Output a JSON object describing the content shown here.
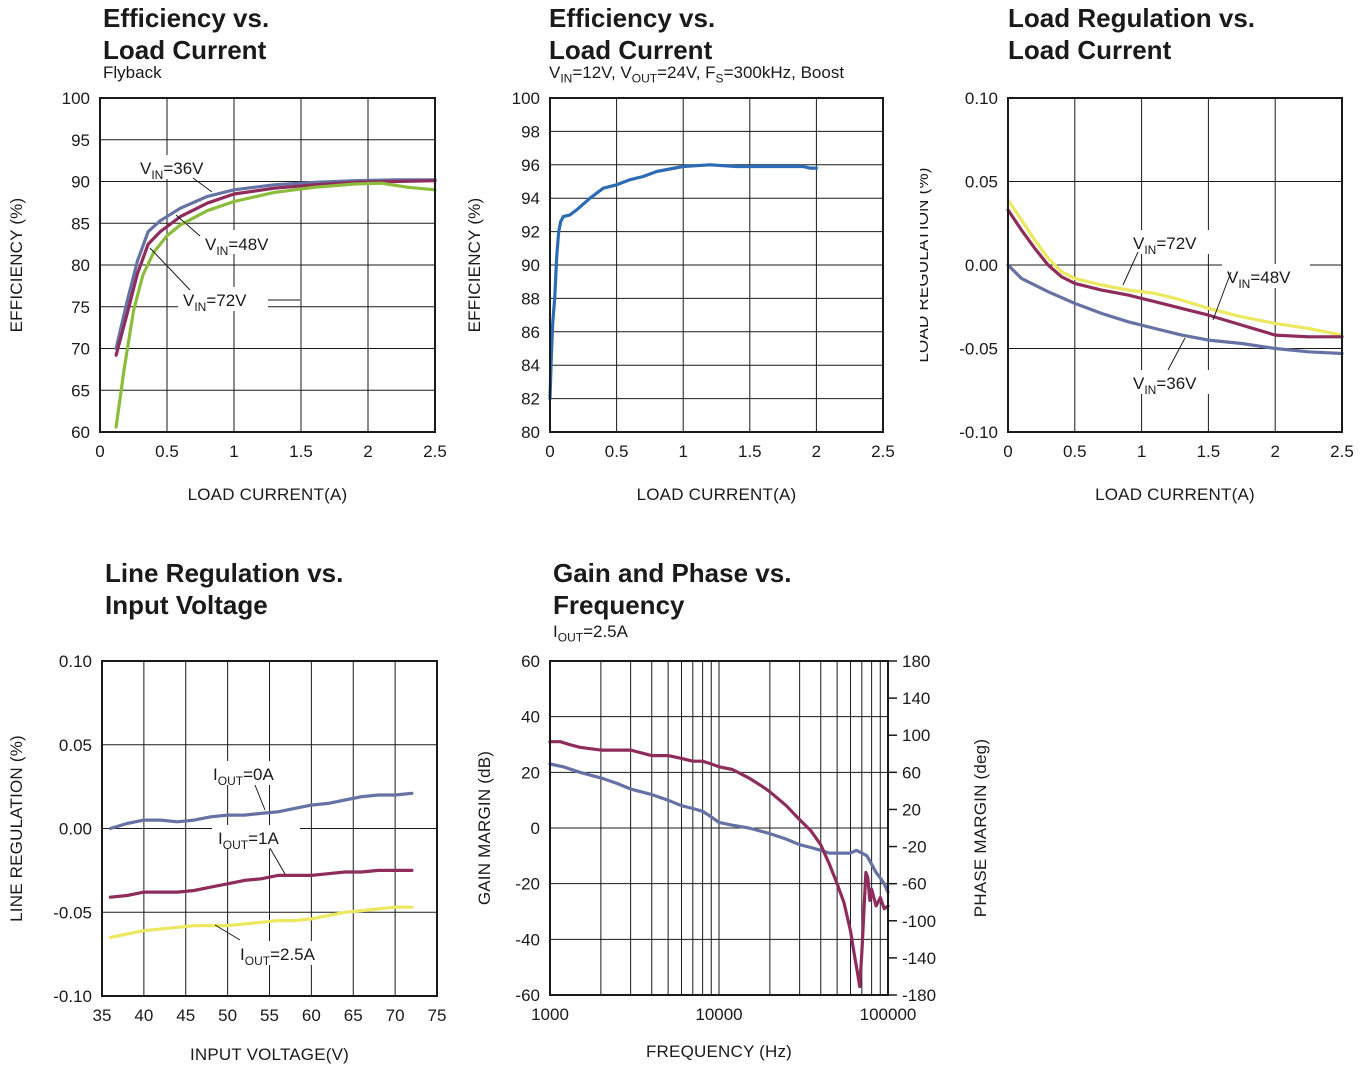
{
  "chart_data": [
    {
      "type": "line",
      "title": "Efficiency vs.\nLoad Current",
      "subtitle": "Flyback",
      "xlabel": "LOAD CURRENT(A)",
      "ylabel": "EFFICIENCY (%)",
      "xlim": [
        0,
        2.5
      ],
      "ylim": [
        60,
        100
      ],
      "xticks": [
        0,
        0.5,
        1,
        1.5,
        2,
        2.5
      ],
      "xtick_labels": [
        "0",
        "0.5",
        "1",
        "1.5",
        "2",
        "2.5"
      ],
      "yticks": [
        60,
        65,
        70,
        75,
        80,
        85,
        90,
        95,
        100
      ],
      "ytick_labels": [
        "60",
        "65",
        "70",
        "75",
        "80",
        "85",
        "90",
        "95",
        "100"
      ],
      "grid": true,
      "series": [
        {
          "name": "V_IN=36V",
          "color": "#6672a4",
          "x": [
            0.12,
            0.2,
            0.28,
            0.36,
            0.45,
            0.6,
            0.8,
            1.0,
            1.3,
            1.6,
            1.9,
            2.2,
            2.5
          ],
          "y": [
            70.0,
            75.5,
            80.5,
            84.0,
            85.3,
            86.8,
            88.2,
            89.0,
            89.6,
            89.9,
            90.1,
            90.2,
            90.2
          ]
        },
        {
          "name": "V_IN=48V",
          "color": "#8e2c5c",
          "x": [
            0.12,
            0.2,
            0.28,
            0.36,
            0.45,
            0.6,
            0.8,
            1.0,
            1.3,
            1.6,
            1.9,
            2.2,
            2.5
          ],
          "y": [
            69.2,
            74.0,
            79.0,
            82.5,
            84.0,
            85.8,
            87.4,
            88.5,
            89.2,
            89.6,
            89.9,
            90.0,
            90.1
          ]
        },
        {
          "name": "V_IN=72V",
          "color": "#8cbc3c",
          "x": [
            0.12,
            0.18,
            0.25,
            0.32,
            0.4,
            0.5,
            0.6,
            0.8,
            1.0,
            1.3,
            1.6,
            1.9,
            2.1,
            2.3,
            2.5
          ],
          "y": [
            60.6,
            67.5,
            74.5,
            78.8,
            81.5,
            83.5,
            84.8,
            86.5,
            87.6,
            88.7,
            89.3,
            89.7,
            89.8,
            89.3,
            89.0
          ]
        }
      ],
      "labels": [
        {
          "text_main": "V",
          "text_sub": "IN",
          "text_rest": "=36V"
        },
        {
          "text_main": "V",
          "text_sub": "IN",
          "text_rest": "=48V"
        },
        {
          "text_main": "V",
          "text_sub": "IN",
          "text_rest": "=72V"
        }
      ]
    },
    {
      "type": "line",
      "title": "Efficiency vs.\nLoad Current",
      "subtitle": "V_IN=12V, V_OUT=24V, F_S=300kHz, Boost",
      "xlabel": "LOAD CURRENT(A)",
      "ylabel": "EFFICIENCY (%)",
      "xlim": [
        0,
        2.5
      ],
      "ylim": [
        80,
        100
      ],
      "xticks": [
        0,
        0.5,
        1,
        1.5,
        2,
        2.5
      ],
      "xtick_labels": [
        "0",
        "0.5",
        "1",
        "1.5",
        "2",
        "2.5"
      ],
      "yticks": [
        80,
        82,
        84,
        86,
        88,
        90,
        92,
        94,
        96,
        98,
        100
      ],
      "ytick_labels": [
        "80",
        "82",
        "84",
        "86",
        "88",
        "90",
        "92",
        "94",
        "96",
        "98",
        "100"
      ],
      "grid": true,
      "series": [
        {
          "name": "",
          "color": "#2c6cb4",
          "x": [
            0.0,
            0.01,
            0.02,
            0.035,
            0.05,
            0.065,
            0.08,
            0.1,
            0.15,
            0.2,
            0.3,
            0.4,
            0.5,
            0.6,
            0.7,
            0.8,
            1.0,
            1.2,
            1.4,
            1.6,
            1.8,
            1.9,
            1.95,
            2.0
          ],
          "y": [
            82.0,
            84.5,
            86.5,
            88.0,
            90.5,
            92.0,
            92.6,
            92.9,
            93.0,
            93.3,
            94.0,
            94.6,
            94.8,
            95.1,
            95.3,
            95.6,
            95.9,
            96.0,
            95.9,
            95.9,
            95.9,
            95.9,
            95.8,
            95.8
          ]
        }
      ],
      "labels": []
    },
    {
      "type": "line",
      "title": "Load Regulation vs.\nLoad Current",
      "subtitle": "",
      "xlabel": "LOAD CURRENT(A)",
      "ylabel": "LOAD REGULATION (%)",
      "xlim": [
        0,
        2.5
      ],
      "ylim": [
        -0.1,
        0.1
      ],
      "xticks": [
        0,
        0.5,
        1,
        1.5,
        2,
        2.5
      ],
      "xtick_labels": [
        "0",
        "0.5",
        "1",
        "1.5",
        "2",
        "2.5"
      ],
      "yticks": [
        -0.1,
        -0.05,
        0.0,
        0.05,
        0.1
      ],
      "ytick_labels": [
        "-0.10",
        "-0.05",
        "0.00",
        "0.05",
        "0.10"
      ],
      "grid": true,
      "series": [
        {
          "name": "V_IN=72V",
          "color": "#ece860",
          "x": [
            0.0,
            0.1,
            0.2,
            0.3,
            0.4,
            0.5,
            0.7,
            0.9,
            1.1,
            1.3,
            1.5,
            1.75,
            2.0,
            2.25,
            2.5
          ],
          "y": [
            0.039,
            0.027,
            0.015,
            0.004,
            -0.004,
            -0.008,
            -0.012,
            -0.015,
            -0.017,
            -0.021,
            -0.026,
            -0.031,
            -0.035,
            -0.038,
            -0.042
          ]
        },
        {
          "name": "V_IN=48V",
          "color": "#8e2c5c",
          "x": [
            0.0,
            0.1,
            0.2,
            0.3,
            0.4,
            0.5,
            0.7,
            0.9,
            1.1,
            1.3,
            1.5,
            1.75,
            2.0,
            2.25,
            2.5
          ],
          "y": [
            0.033,
            0.021,
            0.01,
            0.0,
            -0.007,
            -0.011,
            -0.015,
            -0.018,
            -0.022,
            -0.026,
            -0.03,
            -0.036,
            -0.042,
            -0.043,
            -0.043
          ]
        },
        {
          "name": "V_IN=36V",
          "color": "#6672a4",
          "x": [
            0.0,
            0.1,
            0.3,
            0.5,
            0.7,
            0.9,
            1.1,
            1.3,
            1.5,
            1.75,
            2.0,
            2.25,
            2.5
          ],
          "y": [
            0.0,
            -0.008,
            -0.016,
            -0.023,
            -0.029,
            -0.034,
            -0.038,
            -0.042,
            -0.045,
            -0.047,
            -0.05,
            -0.052,
            -0.053
          ]
        }
      ],
      "labels": [
        {
          "text_main": "V",
          "text_sub": "IN",
          "text_rest": "=72V"
        },
        {
          "text_main": "V",
          "text_sub": "IN",
          "text_rest": "=48V"
        },
        {
          "text_main": "V",
          "text_sub": "IN",
          "text_rest": "=36V"
        }
      ]
    },
    {
      "type": "line",
      "title": "Line Regulation vs.\nInput Voltage",
      "subtitle": "",
      "xlabel": "INPUT VOLTAGE(V)",
      "ylabel": "LINE REGULATION (%)",
      "xlim": [
        35,
        75
      ],
      "ylim": [
        -0.1,
        0.1
      ],
      "xticks": [
        35,
        40,
        45,
        50,
        55,
        60,
        65,
        70,
        75
      ],
      "xtick_labels": [
        "35",
        "40",
        "45",
        "50",
        "55",
        "60",
        "65",
        "70",
        "75"
      ],
      "yticks": [
        -0.1,
        -0.05,
        0.0,
        0.05,
        0.1
      ],
      "ytick_labels": [
        "-0.10",
        "-0.05",
        "0.00",
        "0.05",
        "0.10"
      ],
      "grid": true,
      "series": [
        {
          "name": "I_OUT=0A",
          "color": "#6672a4",
          "x": [
            36,
            38,
            40,
            42,
            44,
            46,
            48,
            50,
            52,
            54,
            56,
            58,
            60,
            62,
            64,
            66,
            68,
            70,
            72
          ],
          "y": [
            0.0,
            0.003,
            0.005,
            0.005,
            0.004,
            0.005,
            0.007,
            0.008,
            0.008,
            0.009,
            0.01,
            0.012,
            0.014,
            0.015,
            0.017,
            0.019,
            0.02,
            0.02,
            0.021
          ]
        },
        {
          "name": "I_OUT=1A",
          "color": "#8e2c5c",
          "x": [
            36,
            38,
            40,
            42,
            44,
            46,
            48,
            50,
            52,
            54,
            56,
            58,
            60,
            62,
            64,
            66,
            68,
            70,
            72
          ],
          "y": [
            -0.041,
            -0.04,
            -0.038,
            -0.038,
            -0.038,
            -0.037,
            -0.035,
            -0.033,
            -0.031,
            -0.03,
            -0.028,
            -0.028,
            -0.028,
            -0.027,
            -0.026,
            -0.026,
            -0.025,
            -0.025,
            -0.025
          ]
        },
        {
          "name": "I_OUT=2.5A",
          "color": "#ece860",
          "x": [
            36,
            38,
            40,
            42,
            44,
            46,
            48,
            50,
            52,
            54,
            56,
            58,
            60,
            62,
            64,
            66,
            68,
            70,
            72
          ],
          "y": [
            -0.065,
            -0.063,
            -0.061,
            -0.06,
            -0.059,
            -0.058,
            -0.058,
            -0.058,
            -0.057,
            -0.056,
            -0.055,
            -0.055,
            -0.054,
            -0.052,
            -0.05,
            -0.049,
            -0.048,
            -0.047,
            -0.047
          ]
        }
      ],
      "labels": [
        {
          "text_main": "I",
          "text_sub": "OUT",
          "text_rest": "=0A"
        },
        {
          "text_main": "I",
          "text_sub": "OUT",
          "text_rest": "=1A"
        },
        {
          "text_main": "I",
          "text_sub": "OUT",
          "text_rest": "=2.5A"
        }
      ]
    },
    {
      "type": "line",
      "title": "Gain and Phase vs.\nFrequency",
      "subtitle": "I_OUT=2.5A",
      "xlabel": "FREQUENCY (Hz)",
      "ylabel": "GAIN MARGIN (dB)",
      "y2label": "PHASE MARGIN (deg)",
      "xscale": "log",
      "xlim": [
        1000,
        100000
      ],
      "ylim": [
        -60,
        60
      ],
      "y2lim": [
        -180,
        180
      ],
      "xticks": [
        1000,
        10000,
        100000
      ],
      "xtick_labels": [
        "1000",
        "10000",
        "100000"
      ],
      "yticks": [
        -60,
        -40,
        -20,
        0,
        20,
        40,
        60
      ],
      "ytick_labels": [
        "-60",
        "-40",
        "-20",
        "0",
        "20",
        "40",
        "60"
      ],
      "y2ticks": [
        -180,
        -140,
        -100,
        -60,
        -20,
        20,
        60,
        100,
        140,
        180
      ],
      "y2tick_labels": [
        "-180",
        "-140",
        "-100",
        "-60",
        "-20",
        "20",
        "60",
        "100",
        "140",
        "180"
      ],
      "grid": true,
      "series": [
        {
          "name": "",
          "axis": "left",
          "color": "#6672a4",
          "x": [
            1000,
            1200,
            1500,
            2000,
            2500,
            3000,
            4000,
            5000,
            6000,
            7000,
            8000,
            9000,
            10000,
            12000,
            15000,
            20000,
            25000,
            30000,
            35000,
            40000,
            45000,
            50000,
            55000,
            60000,
            65000,
            70000,
            75000,
            80000,
            85000,
            90000,
            95000,
            100000
          ],
          "y": [
            23,
            22,
            20,
            18,
            16,
            14,
            12,
            10,
            8,
            7,
            6,
            4,
            2,
            1,
            0,
            -2,
            -4,
            -6,
            -7,
            -8,
            -9,
            -9,
            -9,
            -9,
            -8,
            -9,
            -10,
            -13,
            -16,
            -18,
            -20,
            -23
          ]
        },
        {
          "name": "",
          "axis": "left",
          "color": "#8e2c5c",
          "x": [
            1000,
            1150,
            1300,
            1500,
            2000,
            3000,
            4000,
            5000,
            6000,
            7000,
            8000,
            9000,
            10000,
            12000,
            15000,
            18000,
            20000,
            25000,
            30000,
            35000,
            40000,
            45000,
            50000,
            55000,
            60000,
            63000,
            66000,
            68000,
            70000,
            72000,
            74000,
            76000,
            78000,
            80000,
            85000,
            90000,
            95000,
            100000
          ],
          "y": [
            31,
            31,
            30,
            29,
            28,
            28,
            26,
            26,
            25,
            24,
            24,
            23,
            22,
            21,
            18,
            15,
            13,
            8,
            3,
            -1,
            -6,
            -13,
            -20,
            -27,
            -37,
            -45,
            -52,
            -57,
            -45,
            -30,
            -16,
            -18,
            -26,
            -22,
            -28,
            -25,
            -29,
            -28
          ]
        }
      ],
      "labels": []
    }
  ]
}
